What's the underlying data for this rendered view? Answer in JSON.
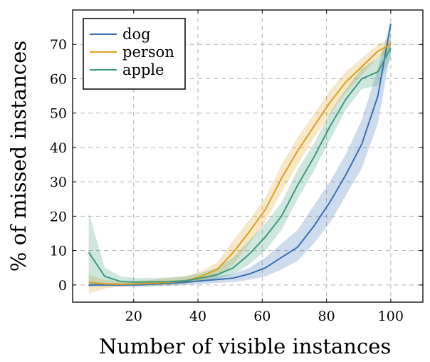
{
  "chart_data": {
    "type": "line",
    "xlabel": "Number of visible instances",
    "ylabel": "% of missed instances",
    "xlim": [
      1,
      110
    ],
    "ylim": [
      -5,
      80
    ],
    "xticks": [
      20,
      40,
      60,
      80,
      100
    ],
    "yticks": [
      0,
      10,
      20,
      30,
      40,
      50,
      60,
      70
    ],
    "grid": true,
    "legend_position": "top-left",
    "series": [
      {
        "name": "dog",
        "color": "#3a71b5",
        "x": [
          6,
          11,
          16,
          21,
          26,
          31,
          36,
          41,
          46,
          51,
          56,
          61,
          66,
          71,
          76,
          81,
          86,
          91,
          96,
          100
        ],
        "y": [
          0.0,
          0.0,
          0.0,
          0.0,
          0.2,
          0.5,
          0.8,
          1.2,
          1.6,
          2.0,
          3.2,
          5.0,
          8.0,
          11.0,
          17.0,
          24.0,
          32.0,
          41.0,
          55.0,
          76.0
        ],
        "lower": [
          -0.5,
          -0.5,
          -0.5,
          -0.5,
          -0.5,
          -0.3,
          0.0,
          0.3,
          0.6,
          0.8,
          1.5,
          2.5,
          4.5,
          7.0,
          12.0,
          18.0,
          26.0,
          34.0,
          47.0,
          68.0
        ],
        "upper": [
          0.5,
          0.5,
          0.5,
          0.5,
          0.8,
          1.2,
          1.6,
          2.1,
          2.6,
          3.2,
          5.0,
          8.0,
          12.0,
          16.0,
          23.0,
          30.0,
          38.0,
          48.0,
          63.0,
          77.0
        ]
      },
      {
        "name": "person",
        "color": "#dba021",
        "x": [
          6,
          11,
          16,
          21,
          26,
          31,
          36,
          41,
          46,
          51,
          56,
          61,
          66,
          71,
          76,
          81,
          86,
          91,
          96,
          100
        ],
        "y": [
          0.8,
          0.3,
          0.2,
          0.3,
          0.5,
          0.8,
          1.2,
          2.5,
          4.5,
          9.5,
          15.5,
          22.0,
          31.0,
          39.0,
          46.0,
          53.0,
          59.0,
          63.5,
          68.0,
          70.0
        ],
        "lower": [
          -2.5,
          -1.0,
          -0.5,
          -0.3,
          -0.2,
          0.0,
          0.3,
          1.2,
          2.5,
          6.0,
          12.0,
          18.5,
          27.0,
          35.0,
          42.5,
          49.5,
          56.0,
          61.0,
          66.0,
          68.5
        ],
        "upper": [
          3.0,
          1.5,
          1.0,
          1.2,
          1.5,
          2.0,
          2.5,
          4.0,
          6.5,
          13.0,
          19.0,
          25.5,
          35.0,
          43.0,
          49.5,
          56.5,
          62.0,
          66.0,
          70.0,
          71.5
        ]
      },
      {
        "name": "apple",
        "color": "#3d9b78",
        "x": [
          6,
          11,
          16,
          21,
          26,
          31,
          36,
          41,
          46,
          51,
          56,
          61,
          66,
          71,
          76,
          81,
          86,
          91,
          96,
          100
        ],
        "y": [
          9.5,
          2.5,
          1.0,
          0.8,
          0.9,
          1.0,
          1.2,
          2.0,
          3.0,
          5.0,
          9.0,
          14.0,
          20.0,
          29.0,
          37.0,
          46.0,
          54.0,
          60.0,
          62.0,
          69.0
        ],
        "lower": [
          -0.5,
          0.5,
          0.0,
          0.0,
          0.0,
          0.2,
          0.5,
          1.0,
          1.8,
          3.0,
          6.0,
          10.0,
          16.0,
          25.0,
          33.0,
          42.0,
          51.0,
          57.0,
          58.0,
          66.0
        ],
        "upper": [
          21.0,
          5.0,
          2.5,
          2.0,
          2.0,
          2.2,
          2.5,
          3.5,
          5.0,
          8.0,
          13.0,
          18.0,
          24.0,
          33.5,
          41.0,
          50.0,
          57.0,
          63.0,
          66.0,
          71.0
        ]
      }
    ]
  }
}
